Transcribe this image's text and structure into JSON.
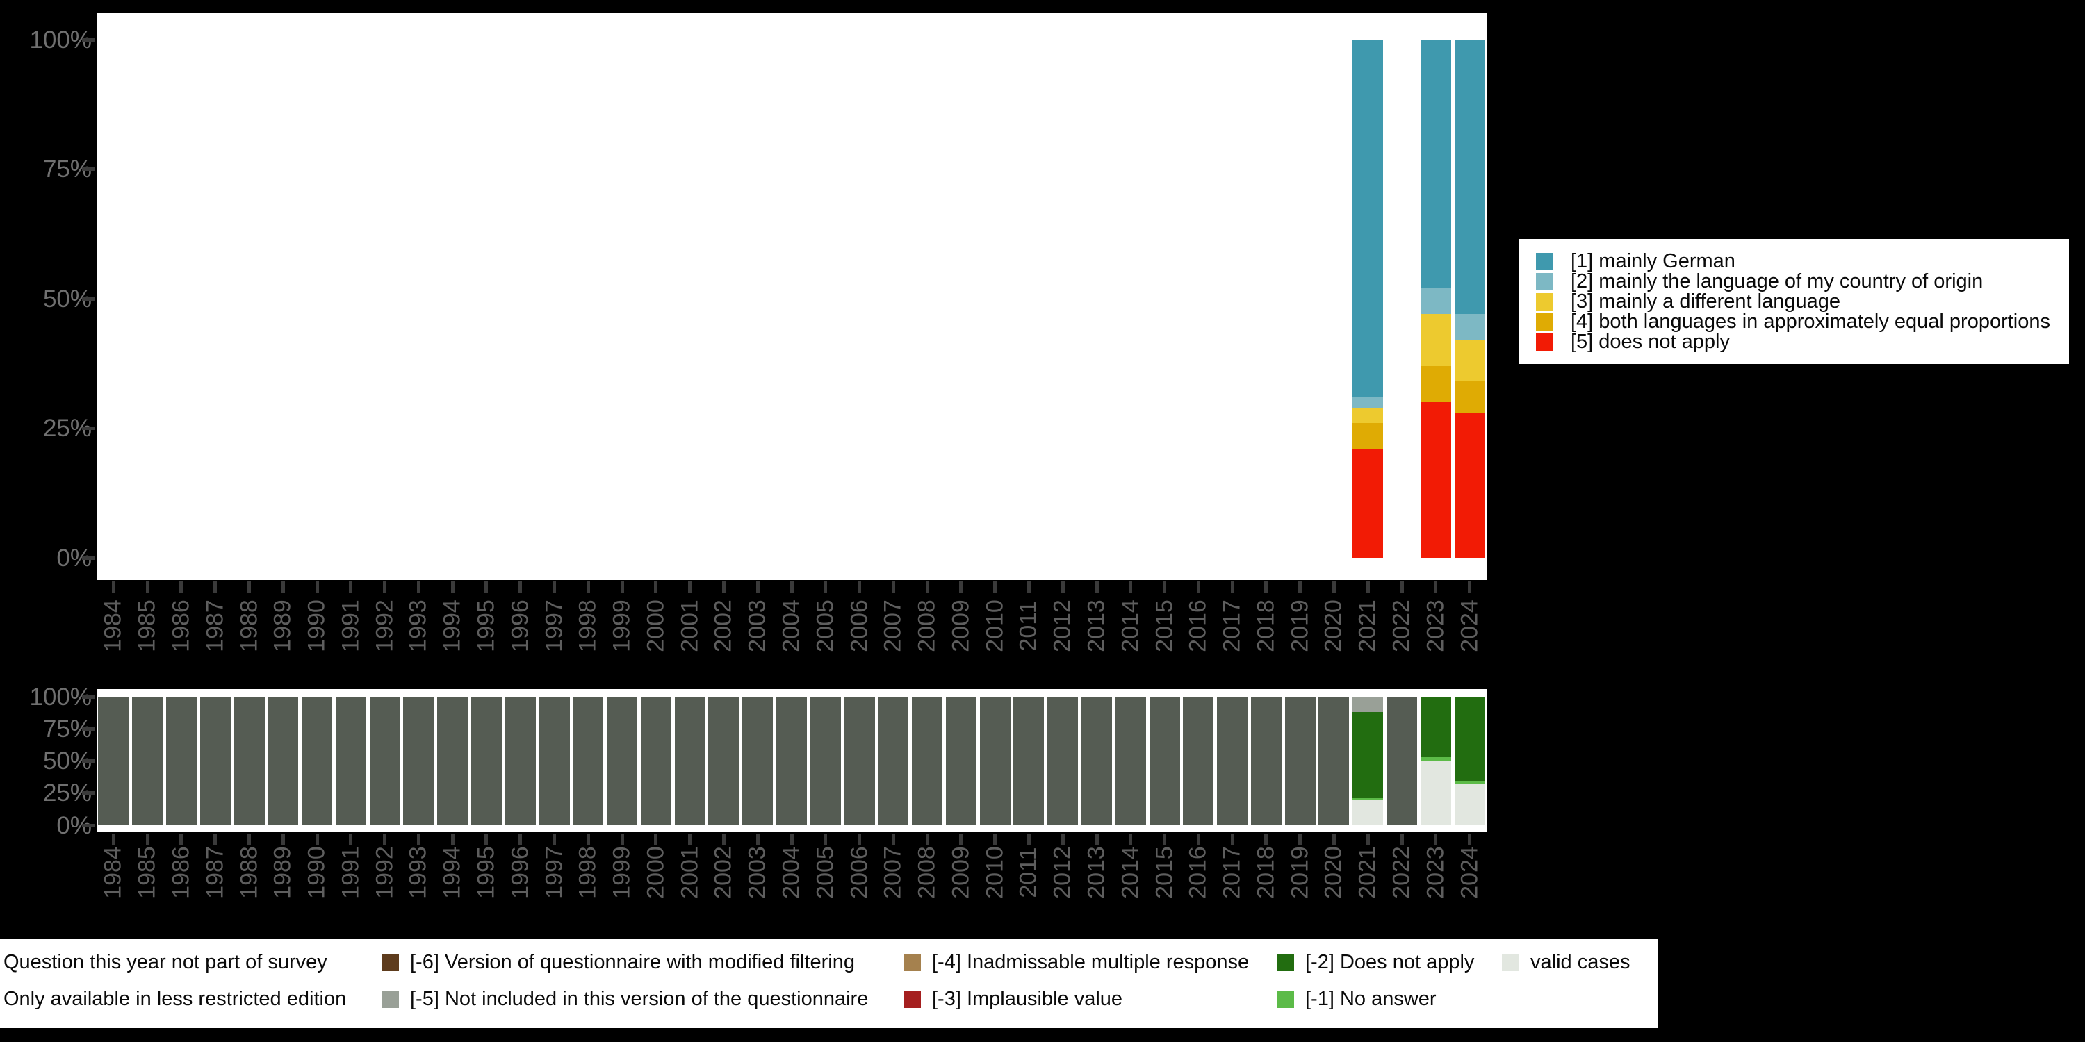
{
  "colors": {
    "background": "#000000",
    "plot_background": "#ffffff",
    "axis_tick": "#3a3a3a",
    "axis_label_percent": "#707070",
    "axis_label_year": "#5e5e5e",
    "legend_text": "#0a0a0a"
  },
  "chart_data": [
    {
      "type": "bar",
      "stacked": true,
      "grid": false,
      "legend_position": "right",
      "ylim": [
        0,
        100
      ],
      "yticks": [
        {
          "label": "100%",
          "value": 100
        },
        {
          "label": "75%",
          "value": 75
        },
        {
          "label": "50%",
          "value": 50
        },
        {
          "label": "25%",
          "value": 25
        },
        {
          "label": "0%",
          "value": 0
        }
      ],
      "categories": [
        "1984",
        "1985",
        "1986",
        "1987",
        "1988",
        "1989",
        "1990",
        "1991",
        "1992",
        "1993",
        "1994",
        "1995",
        "1996",
        "1997",
        "1998",
        "1999",
        "2000",
        "2001",
        "2002",
        "2003",
        "2004",
        "2005",
        "2006",
        "2007",
        "2008",
        "2009",
        "2010",
        "2011",
        "2012",
        "2013",
        "2014",
        "2015",
        "2016",
        "2017",
        "2018",
        "2019",
        "2020",
        "2021",
        "2022",
        "2023",
        "2024"
      ],
      "series": [
        {
          "name": "[1] mainly German",
          "color": "#3f99ae",
          "values": {
            "2021": 69,
            "2023": 48,
            "2024": 53
          }
        },
        {
          "name": "[2] mainly the language of my country of origin",
          "color": "#7db8c4",
          "values": {
            "2021": 2,
            "2023": 5,
            "2024": 5
          }
        },
        {
          "name": "[3] mainly a different language",
          "color": "#edca2f",
          "values": {
            "2021": 3,
            "2023": 10,
            "2024": 8
          }
        },
        {
          "name": "[4] both languages in approximately equal proportions",
          "color": "#dfab04",
          "values": {
            "2021": 5,
            "2023": 7,
            "2024": 6
          }
        },
        {
          "name": "[5] does not apply",
          "color": "#f21b05",
          "values": {
            "2021": 21,
            "2023": 30,
            "2024": 28
          }
        }
      ]
    },
    {
      "type": "bar",
      "stacked": true,
      "grid": false,
      "legend_position": "bottom",
      "ylim": [
        0,
        100
      ],
      "yticks": [
        {
          "label": "100%",
          "value": 100
        },
        {
          "label": "75%",
          "value": 75
        },
        {
          "label": "50%",
          "value": 50
        },
        {
          "label": "25%",
          "value": 25
        },
        {
          "label": "0%",
          "value": 0
        }
      ],
      "categories": [
        "1984",
        "1985",
        "1986",
        "1987",
        "1988",
        "1989",
        "1990",
        "1991",
        "1992",
        "1993",
        "1994",
        "1995",
        "1996",
        "1997",
        "1998",
        "1999",
        "2000",
        "2001",
        "2002",
        "2003",
        "2004",
        "2005",
        "2006",
        "2007",
        "2008",
        "2009",
        "2010",
        "2011",
        "2012",
        "2013",
        "2014",
        "2015",
        "2016",
        "2017",
        "2018",
        "2019",
        "2020",
        "2021",
        "2022",
        "2023",
        "2024"
      ],
      "series": [
        {
          "name": "[-8] Question this year not part of survey",
          "color": "#555c53",
          "values": {
            "1984": 100,
            "1985": 100,
            "1986": 100,
            "1987": 100,
            "1988": 100,
            "1989": 100,
            "1990": 100,
            "1991": 100,
            "1992": 100,
            "1993": 100,
            "1994": 100,
            "1995": 100,
            "1996": 100,
            "1997": 100,
            "1998": 100,
            "1999": 100,
            "2000": 100,
            "2001": 100,
            "2002": 100,
            "2003": 100,
            "2004": 100,
            "2005": 100,
            "2006": 100,
            "2007": 100,
            "2008": 100,
            "2009": 100,
            "2010": 100,
            "2011": 100,
            "2012": 100,
            "2013": 100,
            "2014": 100,
            "2015": 100,
            "2016": 100,
            "2017": 100,
            "2018": 100,
            "2019": 100,
            "2020": 100,
            "2022": 100
          }
        },
        {
          "name": "[-5] Not included in this version of the questionnaire",
          "color": "#99a097",
          "values": {
            "2021": 12
          }
        },
        {
          "name": "[-2] Does not apply",
          "color": "#226d10",
          "values": {
            "2021": 67,
            "2023": 47,
            "2024": 66
          }
        },
        {
          "name": "[-1] No answer",
          "color": "#5cbb48",
          "values": {
            "2021": 1,
            "2023": 3,
            "2024": 2
          }
        },
        {
          "name": "valid cases",
          "color": "#e2e7e0",
          "values": {
            "2021": 20,
            "2023": 50,
            "2024": 32
          }
        }
      ]
    }
  ],
  "legend_main": {
    "items": [
      {
        "label": "[1] mainly German",
        "color": "#3f99ae"
      },
      {
        "label": "[2] mainly the language of my country of origin",
        "color": "#7db8c4"
      },
      {
        "label": "[3] mainly a different language",
        "color": "#edca2f"
      },
      {
        "label": "[4] both languages in approximately equal proportions",
        "color": "#dfab04"
      },
      {
        "label": "[5] does not apply",
        "color": "#f21b05"
      }
    ]
  },
  "legend_missing": {
    "rows": [
      [
        {
          "label": "[-8] Question this year not part of survey",
          "color": "#555c53"
        },
        {
          "label": "[-6] Version of questionnaire with modified filtering",
          "color": "#5e3c1d"
        },
        {
          "label": "[-4] Inadmissable multiple response",
          "color": "#a5814e"
        },
        {
          "label": "[-2] Does not apply",
          "color": "#226d10"
        },
        {
          "label": "valid cases",
          "color": "#e2e7e0"
        }
      ],
      [
        {
          "label": "[-7] Only available in less restricted edition",
          "color": "#8a9086"
        },
        {
          "label": "[-5] Not included in this version of the questionnaire",
          "color": "#99a097"
        },
        {
          "label": "[-3] Implausible value",
          "color": "#a51f1f"
        },
        {
          "label": "[-1] No answer",
          "color": "#5cbb48"
        }
      ]
    ]
  }
}
